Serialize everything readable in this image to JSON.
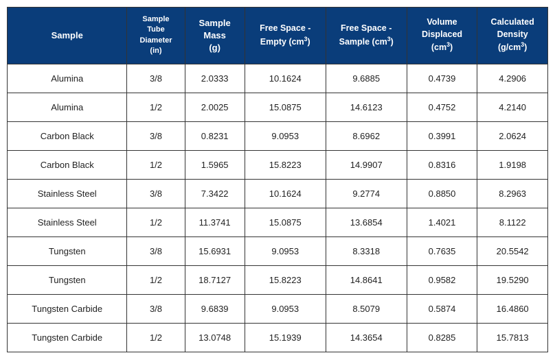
{
  "table": {
    "columns": [
      "Sample",
      "Sample Tube Diameter (in)",
      "Sample Mass (g)",
      "Free Space - Empty (cm³)",
      "Free Space - Sample (cm³)",
      "Volume Displaced (cm³)",
      "Calculated Density (g/cm³)"
    ],
    "rows": [
      {
        "sample": "Alumina",
        "diameter": "3/8",
        "mass": "2.0333",
        "fs_empty": "10.1624",
        "fs_sample": "9.6885",
        "vol_disp": "0.4739",
        "density": "4.2906"
      },
      {
        "sample": "Alumina",
        "diameter": "1/2",
        "mass": "2.0025",
        "fs_empty": "15.0875",
        "fs_sample": "14.6123",
        "vol_disp": "0.4752",
        "density": "4.2140"
      },
      {
        "sample": "Carbon Black",
        "diameter": "3/8",
        "mass": "0.8231",
        "fs_empty": "9.0953",
        "fs_sample": "8.6962",
        "vol_disp": "0.3991",
        "density": "2.0624"
      },
      {
        "sample": "Carbon Black",
        "diameter": "1/2",
        "mass": "1.5965",
        "fs_empty": "15.8223",
        "fs_sample": "14.9907",
        "vol_disp": "0.8316",
        "density": "1.9198"
      },
      {
        "sample": "Stainless Steel",
        "diameter": "3/8",
        "mass": "7.3422",
        "fs_empty": "10.1624",
        "fs_sample": "9.2774",
        "vol_disp": "0.8850",
        "density": "8.2963"
      },
      {
        "sample": "Stainless Steel",
        "diameter": "1/2",
        "mass": "11.3741",
        "fs_empty": "15.0875",
        "fs_sample": "13.6854",
        "vol_disp": "1.4021",
        "density": "8.1122"
      },
      {
        "sample": "Tungsten",
        "diameter": "3/8",
        "mass": "15.6931",
        "fs_empty": "9.0953",
        "fs_sample": "8.3318",
        "vol_disp": "0.7635",
        "density": "20.5542"
      },
      {
        "sample": "Tungsten",
        "diameter": "1/2",
        "mass": "18.7127",
        "fs_empty": "15.8223",
        "fs_sample": "14.8641",
        "vol_disp": "0.9582",
        "density": "19.5290"
      },
      {
        "sample": "Tungsten Carbide",
        "diameter": "3/8",
        "mass": "9.6839",
        "fs_empty": "9.0953",
        "fs_sample": "8.5079",
        "vol_disp": "0.5874",
        "density": "16.4860"
      },
      {
        "sample": "Tungsten Carbide",
        "diameter": "1/2",
        "mass": "13.0748",
        "fs_empty": "15.1939",
        "fs_sample": "14.3654",
        "vol_disp": "0.8285",
        "density": "15.7813"
      }
    ],
    "header_bg": "#0a3d7a",
    "header_fg": "#ffffff",
    "body_fg": "#222222",
    "border_color": "#333333"
  }
}
